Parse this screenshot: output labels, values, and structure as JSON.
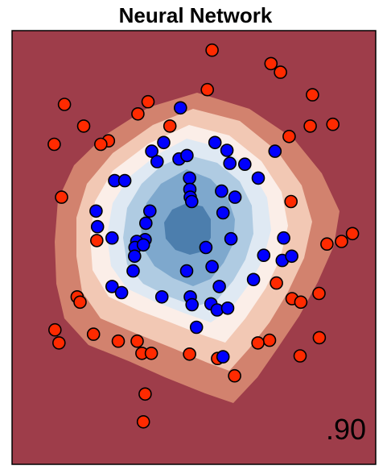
{
  "title": "Neural Network",
  "chart_data": {
    "type": "scatter",
    "title": "Neural Network",
    "xlim": [
      0,
      1
    ],
    "ylim": [
      0,
      1
    ],
    "score": ".90",
    "decision_surface": {
      "description": "classifier probability contour",
      "levels": [
        {
          "level": 0,
          "color": "#9e3d4a"
        },
        {
          "level": 1,
          "color": "#d2826e"
        },
        {
          "level": 2,
          "color": "#f2c8b4"
        },
        {
          "level": 3,
          "color": "#fbeee8"
        },
        {
          "level": 4,
          "color": "#dfe9f3"
        },
        {
          "level": 5,
          "color": "#afcbe2"
        },
        {
          "level": 6,
          "color": "#7ea8cd"
        },
        {
          "level": 7,
          "color": "#4c7ead"
        }
      ]
    },
    "series": [
      {
        "class": "red",
        "fill": "#ff2a00",
        "points": [
          [
            0.55,
            0.955
          ],
          [
            0.712,
            0.924
          ],
          [
            0.738,
            0.904
          ],
          [
            0.537,
            0.864
          ],
          [
            0.826,
            0.852
          ],
          [
            0.374,
            0.836
          ],
          [
            0.144,
            0.83
          ],
          [
            0.346,
            0.808
          ],
          [
            0.197,
            0.78
          ],
          [
            0.434,
            0.78
          ],
          [
            0.82,
            0.78
          ],
          [
            0.882,
            0.784
          ],
          [
            0.762,
            0.756
          ],
          [
            0.116,
            0.738
          ],
          [
            0.265,
            0.746
          ],
          [
            0.244,
            0.738
          ],
          [
            0.136,
            0.616
          ],
          [
            0.767,
            0.606
          ],
          [
            0.936,
            0.532
          ],
          [
            0.906,
            0.514
          ],
          [
            0.866,
            0.508
          ],
          [
            0.233,
            0.516
          ],
          [
            0.727,
            0.418
          ],
          [
            0.179,
            0.386
          ],
          [
            0.187,
            0.374
          ],
          [
            0.77,
            0.382
          ],
          [
            0.794,
            0.374
          ],
          [
            0.844,
            0.394
          ],
          [
            0.118,
            0.31
          ],
          [
            0.224,
            0.3
          ],
          [
            0.292,
            0.284
          ],
          [
            0.344,
            0.284
          ],
          [
            0.129,
            0.28
          ],
          [
            0.708,
            0.286
          ],
          [
            0.676,
            0.28
          ],
          [
            0.845,
            0.292
          ],
          [
            0.357,
            0.256
          ],
          [
            0.383,
            0.256
          ],
          [
            0.488,
            0.254
          ],
          [
            0.792,
            0.25
          ],
          [
            0.565,
            0.244
          ],
          [
            0.612,
            0.204
          ],
          [
            0.366,
            0.162
          ],
          [
            0.361,
            0.098
          ]
        ]
      },
      {
        "class": "blue",
        "fill": "#0000ff",
        "points": [
          [
            0.463,
            0.822
          ],
          [
            0.417,
            0.742
          ],
          [
            0.558,
            0.742
          ],
          [
            0.591,
            0.724
          ],
          [
            0.723,
            0.722
          ],
          [
            0.384,
            0.722
          ],
          [
            0.459,
            0.704
          ],
          [
            0.481,
            0.712
          ],
          [
            0.399,
            0.698
          ],
          [
            0.599,
            0.694
          ],
          [
            0.64,
            0.692
          ],
          [
            0.677,
            0.66
          ],
          [
            0.282,
            0.654
          ],
          [
            0.488,
            0.66
          ],
          [
            0.31,
            0.654
          ],
          [
            0.489,
            0.634
          ],
          [
            0.576,
            0.63
          ],
          [
            0.49,
            0.616
          ],
          [
            0.494,
            0.606
          ],
          [
            0.613,
            0.616
          ],
          [
            0.231,
            0.584
          ],
          [
            0.379,
            0.584
          ],
          [
            0.58,
            0.58
          ],
          [
            0.368,
            0.556
          ],
          [
            0.235,
            0.548
          ],
          [
            0.366,
            0.518
          ],
          [
            0.343,
            0.514
          ],
          [
            0.602,
            0.52
          ],
          [
            0.275,
            0.522
          ],
          [
            0.338,
            0.5
          ],
          [
            0.361,
            0.506
          ],
          [
            0.747,
            0.522
          ],
          [
            0.533,
            0.5
          ],
          [
            0.337,
            0.48
          ],
          [
            0.692,
            0.482
          ],
          [
            0.743,
            0.47
          ],
          [
            0.769,
            0.48
          ],
          [
            0.333,
            0.446
          ],
          [
            0.55,
            0.456
          ],
          [
            0.48,
            0.446
          ],
          [
            0.664,
            0.426
          ],
          [
            0.275,
            0.41
          ],
          [
            0.301,
            0.396
          ],
          [
            0.57,
            0.41
          ],
          [
            0.412,
            0.386
          ],
          [
            0.49,
            0.386
          ],
          [
            0.495,
            0.368
          ],
          [
            0.547,
            0.37
          ],
          [
            0.564,
            0.356
          ],
          [
            0.593,
            0.36
          ],
          [
            0.507,
            0.316
          ],
          [
            0.58,
            0.248
          ]
        ]
      }
    ]
  }
}
